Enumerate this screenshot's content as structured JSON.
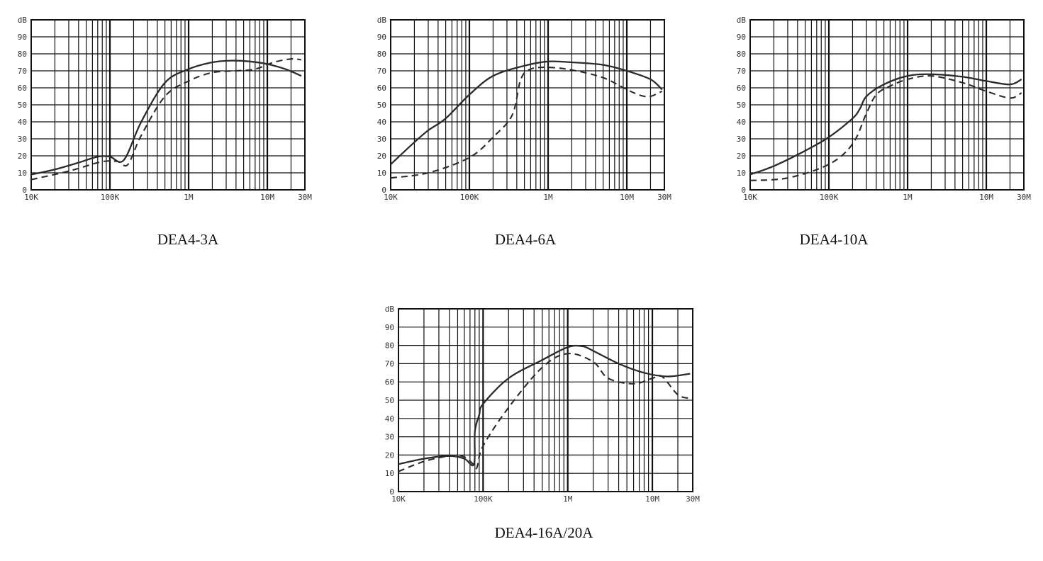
{
  "charts": [
    {
      "title": "DEA4-3A",
      "chart_data": {
        "type": "line",
        "title": "DEA4-3A",
        "ylabel": "dB",
        "xscale": "log",
        "xlim": [
          10000,
          30000000
        ],
        "ylim": [
          0,
          100
        ],
        "x_ticks": [
          {
            "v": 10000,
            "label": "10K"
          },
          {
            "v": 100000,
            "label": "100K"
          },
          {
            "v": 1000000,
            "label": "1M"
          },
          {
            "v": 10000000,
            "label": "10M"
          },
          {
            "v": 30000000,
            "label": "30M"
          }
        ],
        "y_ticks": [
          0,
          10,
          20,
          30,
          40,
          50,
          60,
          70,
          80,
          90
        ],
        "series": [
          {
            "style": "solid",
            "x": [
              10000,
              20000,
              40000,
              70000,
              100000,
              150000,
              250000,
              500000,
              1000000,
              2000000,
              3500000,
              6000000,
              10000000,
              17000000,
              27000000
            ],
            "y": [
              9,
              12,
              16,
              19.5,
              19.5,
              17.5,
              40,
              63,
              71,
              75,
              76,
              75.5,
              74,
              71,
              67
            ]
          },
          {
            "style": "dashed",
            "x": [
              10000,
              30000,
              70000,
              100000,
              130000,
              170000,
              250000,
              500000,
              1000000,
              2000000,
              4000000,
              7000000,
              12000000,
              20000000,
              27000000
            ],
            "y": [
              6,
              11,
              16,
              17,
              16.5,
              15,
              32,
              55,
              64,
              69,
              70,
              71,
              75,
              77,
              76.5
            ]
          }
        ]
      }
    },
    {
      "title": "DEA4-6A",
      "chart_data": {
        "type": "line",
        "title": "DEA4-6A",
        "ylabel": "dB",
        "xscale": "log",
        "xlim": [
          10000,
          30000000
        ],
        "ylim": [
          0,
          100
        ],
        "x_ticks": [
          {
            "v": 10000,
            "label": "10K"
          },
          {
            "v": 100000,
            "label": "100K"
          },
          {
            "v": 1000000,
            "label": "1M"
          },
          {
            "v": 10000000,
            "label": "10M"
          },
          {
            "v": 30000000,
            "label": "30M"
          }
        ],
        "y_ticks": [
          0,
          10,
          20,
          30,
          40,
          50,
          60,
          70,
          80,
          90
        ],
        "series": [
          {
            "style": "solid",
            "x": [
              10000,
              20000,
              30000,
              50000,
              100000,
              200000,
              500000,
              1000000,
              2000000,
              5000000,
              10000000,
              20000000,
              28000000
            ],
            "y": [
              15,
              28,
              35,
              42,
              56,
              67,
              73,
              75.5,
              75,
              73.5,
              70,
              65,
              59
            ]
          },
          {
            "style": "dashed",
            "x": [
              10000,
              30000,
              100000,
              200000,
              350000,
              450000,
              600000,
              1000000,
              2000000,
              5000000,
              10000000,
              15000000,
              20000000,
              28000000
            ],
            "y": [
              7,
              10,
              19,
              31,
              44,
              65,
              71,
              72,
              70.5,
              66,
              59,
              55.5,
              55,
              58
            ]
          }
        ]
      }
    },
    {
      "title": "DEA4-10A",
      "chart_data": {
        "type": "line",
        "title": "DEA4-10A",
        "ylabel": "dB",
        "xscale": "log",
        "xlim": [
          10000,
          30000000
        ],
        "ylim": [
          0,
          100
        ],
        "x_ticks": [
          {
            "v": 10000,
            "label": "10K"
          },
          {
            "v": 100000,
            "label": "100K"
          },
          {
            "v": 1000000,
            "label": "1M"
          },
          {
            "v": 10000000,
            "label": "10M"
          },
          {
            "v": 30000000,
            "label": "30M"
          }
        ],
        "y_ticks": [
          0,
          10,
          20,
          30,
          40,
          50,
          60,
          70,
          80,
          90
        ],
        "series": [
          {
            "style": "solid",
            "x": [
              10000,
              20000,
              50000,
              100000,
              200000,
              250000,
              300000,
              500000,
              1000000,
              2000000,
              5000000,
              10000000,
              20000000,
              28000000
            ],
            "y": [
              9,
              14,
              23,
              31,
              42,
              48,
              55,
              62,
              67,
              68,
              66.5,
              64,
              62,
              65
            ]
          },
          {
            "style": "dashed",
            "x": [
              10000,
              30000,
              100000,
              200000,
              300000,
              400000,
              600000,
              1000000,
              2000000,
              5000000,
              10000000,
              20000000,
              28000000
            ],
            "y": [
              5.5,
              7,
              15,
              27,
              45,
              56,
              61,
              65,
              67,
              63,
              58,
              54,
              57
            ]
          }
        ]
      }
    },
    {
      "title": "DEA4-16A/20A",
      "chart_data": {
        "type": "line",
        "title": "DEA4-16A/20A",
        "ylabel": "dB",
        "xscale": "log",
        "xlim": [
          10000,
          30000000
        ],
        "ylim": [
          0,
          100
        ],
        "x_ticks": [
          {
            "v": 10000,
            "label": "10K"
          },
          {
            "v": 100000,
            "label": "100K"
          },
          {
            "v": 1000000,
            "label": "1M"
          },
          {
            "v": 10000000,
            "label": "10M"
          },
          {
            "v": 30000000,
            "label": "30M"
          }
        ],
        "y_ticks": [
          0,
          10,
          20,
          30,
          40,
          50,
          60,
          70,
          80,
          90
        ],
        "series": [
          {
            "style": "solid",
            "x": [
              10000,
              20000,
              40000,
              60000,
              78000,
              80000,
              90000,
              100000,
              200000,
              500000,
              1000000,
              1500000,
              2000000,
              4000000,
              8000000,
              15000000,
              28000000
            ],
            "y": [
              15,
              18,
              19.5,
              18,
              15,
              33,
              42,
              48,
              62,
              72,
              79,
              79.5,
              77,
              70,
              65,
              63,
              64.5
            ]
          },
          {
            "style": "dashed",
            "x": [
              10000,
              20000,
              40000,
              60000,
              80000,
              85000,
              100000,
              200000,
              500000,
              1000000,
              2000000,
              3000000,
              6000000,
              10000000,
              13000000,
              20000000,
              28000000
            ],
            "y": [
              11,
              16.5,
              19.5,
              19,
              14,
              13.5,
              25,
              46,
              68,
              75.5,
              71,
              62,
              59,
              62,
              63,
              53,
              51
            ]
          }
        ]
      }
    }
  ]
}
